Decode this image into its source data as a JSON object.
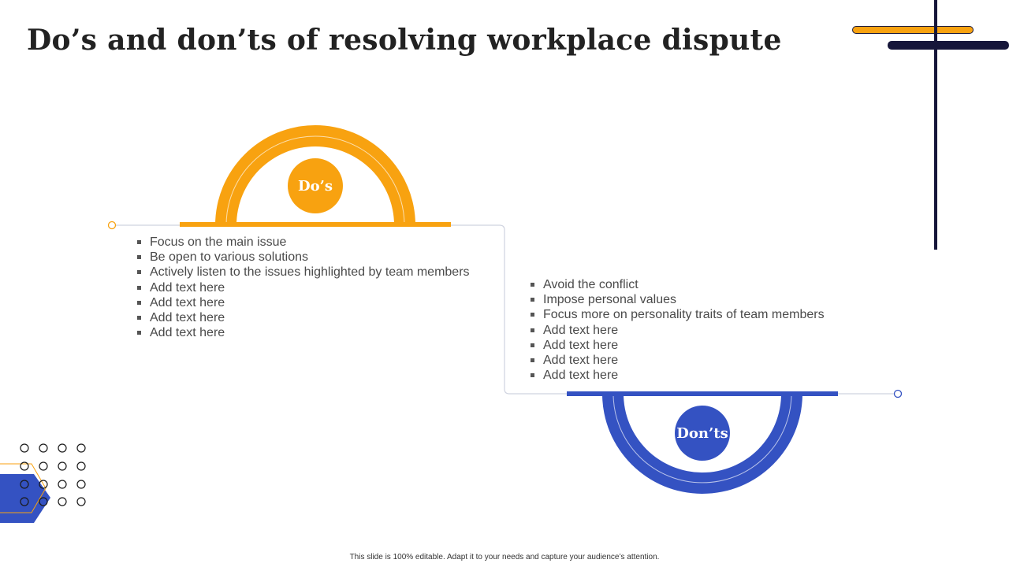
{
  "title": "Do’s and don’ts of resolving workplace dispute",
  "colors": {
    "accent_orange": "#f8a210",
    "accent_blue": "#3452c2",
    "navy": "#16163a"
  },
  "dos": {
    "label": "Do’s",
    "items": [
      "Focus on the main issue",
      "Be open to various solutions",
      "Actively listen to the issues highlighted by team members",
      "Add text here",
      "Add text here",
      "Add text here",
      "Add text here"
    ]
  },
  "donts": {
    "label": "Don’ts",
    "items": [
      "Avoid the conflict",
      "Impose personal values",
      "Focus more on personality traits of team members",
      "Add text here",
      "Add text here",
      "Add text here",
      "Add text here"
    ]
  },
  "footer": "This slide is 100% editable. Adapt it to your needs and capture your audience’s attention."
}
